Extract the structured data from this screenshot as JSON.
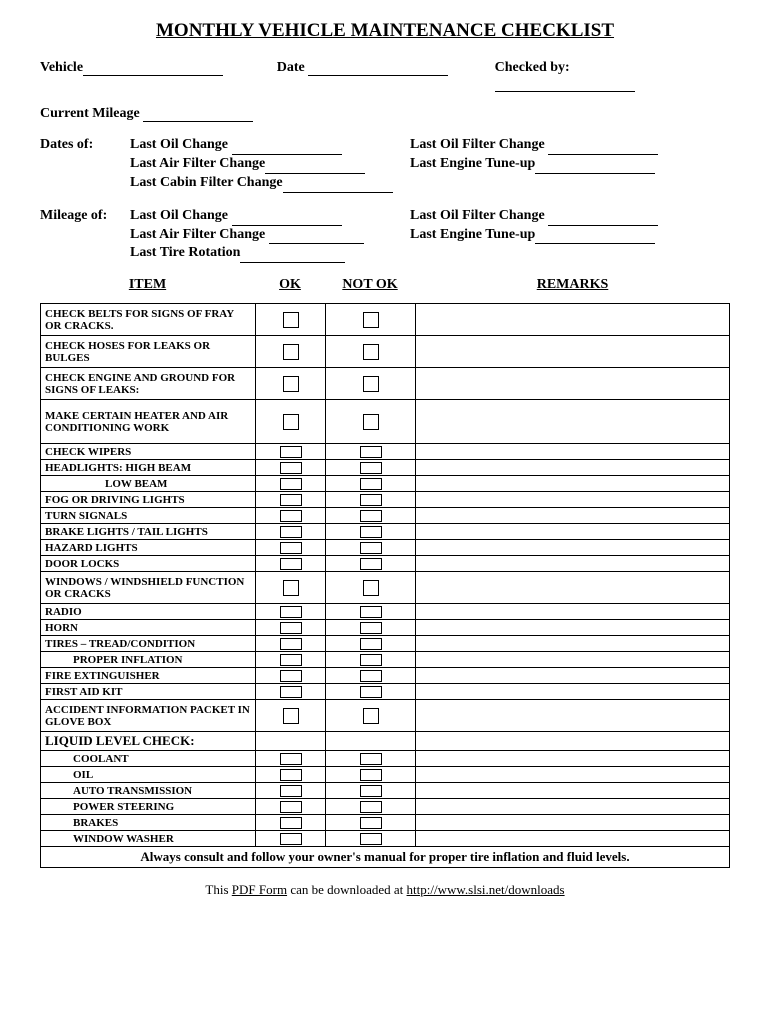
{
  "title": "MONTHLY VEHICLE MAINTENANCE CHECKLIST",
  "header": {
    "vehicle_label": "Vehicle",
    "date_label": "Date",
    "checked_by_label": "Checked by:",
    "current_mileage_label": "Current Mileage"
  },
  "dates_of": {
    "section_label": "Dates of:",
    "last_oil_change": "Last Oil Change",
    "last_oil_filter_change": "Last Oil Filter Change",
    "last_air_filter_change": "Last Air Filter Change",
    "last_engine_tune_up": "Last Engine Tune-up",
    "last_cabin_filter_change": "Last Cabin Filter Change"
  },
  "mileage_of": {
    "section_label": "Mileage of:",
    "last_oil_change": "Last Oil Change",
    "last_oil_filter_change": "Last Oil Filter Change",
    "last_air_filter_change": "Last Air Filter Change",
    "last_engine_tune_up": "Last Engine Tune-up",
    "last_tire_rotation": "Last Tire Rotation"
  },
  "columns": {
    "item": "ITEM",
    "ok": "OK",
    "not_ok": "NOT OK",
    "remarks": "REMARKS"
  },
  "rows": [
    {
      "text": "CHECK BELTS FOR SIGNS OF FRAY OR CRACKS.",
      "class": "tall",
      "box": "lg",
      "indent": ""
    },
    {
      "text": "CHECK HOSES FOR LEAKS OR BULGES",
      "class": "tall",
      "box": "lg",
      "indent": ""
    },
    {
      "text": "CHECK ENGINE AND GROUND FOR SIGNS OF LEAKS:",
      "class": "tall",
      "box": "lg",
      "indent": ""
    },
    {
      "text": "MAKE CERTAIN  HEATER AND  AIR CONDITIONING WORK",
      "class": "tall3",
      "box": "lg",
      "indent": ""
    },
    {
      "text": "CHECK WIPERS",
      "class": "short",
      "box": "sm",
      "indent": ""
    },
    {
      "text": "HEADLIGHTS:  HIGH BEAM",
      "class": "short",
      "box": "sm",
      "indent": ""
    },
    {
      "text": "LOW BEAM",
      "class": "short",
      "box": "sm",
      "indent": "indent2"
    },
    {
      "text": "FOG OR DRIVING LIGHTS",
      "class": "short",
      "box": "sm",
      "indent": ""
    },
    {
      "text": "TURN SIGNALS",
      "class": "short",
      "box": "sm",
      "indent": ""
    },
    {
      "text": "BRAKE LIGHTS / TAIL LIGHTS",
      "class": "short",
      "box": "sm",
      "indent": ""
    },
    {
      "text": "HAZARD LIGHTS",
      "class": "short",
      "box": "sm",
      "indent": ""
    },
    {
      "text": "DOOR LOCKS",
      "class": "short",
      "box": "sm",
      "indent": ""
    },
    {
      "text": "WINDOWS / WINDSHIELD FUNCTION OR CRACKS",
      "class": "tall",
      "box": "lg",
      "indent": ""
    },
    {
      "text": "RADIO",
      "class": "short",
      "box": "sm",
      "indent": ""
    },
    {
      "text": "HORN",
      "class": "short",
      "box": "sm",
      "indent": ""
    },
    {
      "text": "TIRES – TREAD/CONDITION",
      "class": "short",
      "box": "sm",
      "indent": ""
    },
    {
      "text": "PROPER INFLATION",
      "class": "short",
      "box": "sm",
      "indent": "indent1"
    },
    {
      "text": "FIRE EXTINGUISHER",
      "class": "short",
      "box": "sm",
      "indent": ""
    },
    {
      "text": "FIRST AID KIT",
      "class": "short",
      "box": "sm",
      "indent": ""
    },
    {
      "text": "ACCIDENT INFORMATION PACKET IN GLOVE BOX",
      "class": "tall",
      "box": "lg",
      "indent": ""
    },
    {
      "text": "LIQUID LEVEL CHECK:",
      "class": "short",
      "box": "none",
      "indent": "",
      "size": "13px"
    },
    {
      "text": "COOLANT",
      "class": "short",
      "box": "sm",
      "indent": "indent1"
    },
    {
      "text": "OIL",
      "class": "short",
      "box": "sm",
      "indent": "indent1"
    },
    {
      "text": "AUTO TRANSMISSION",
      "class": "short",
      "box": "sm",
      "indent": "indent1"
    },
    {
      "text": "POWER STEERING",
      "class": "short",
      "box": "sm",
      "indent": "indent1"
    },
    {
      "text": "BRAKES",
      "class": "short",
      "box": "sm",
      "indent": "indent1"
    },
    {
      "text": "WINDOW WASHER",
      "class": "short",
      "box": "sm",
      "indent": "indent1"
    }
  ],
  "footer_note": "Always consult and follow your owner's manual for proper tire inflation and fluid levels.",
  "download": {
    "prefix": "This ",
    "pdf_form": "PDF Form",
    "mid": " can be downloaded at ",
    "url": "http://www.slsi.net/downloads"
  }
}
